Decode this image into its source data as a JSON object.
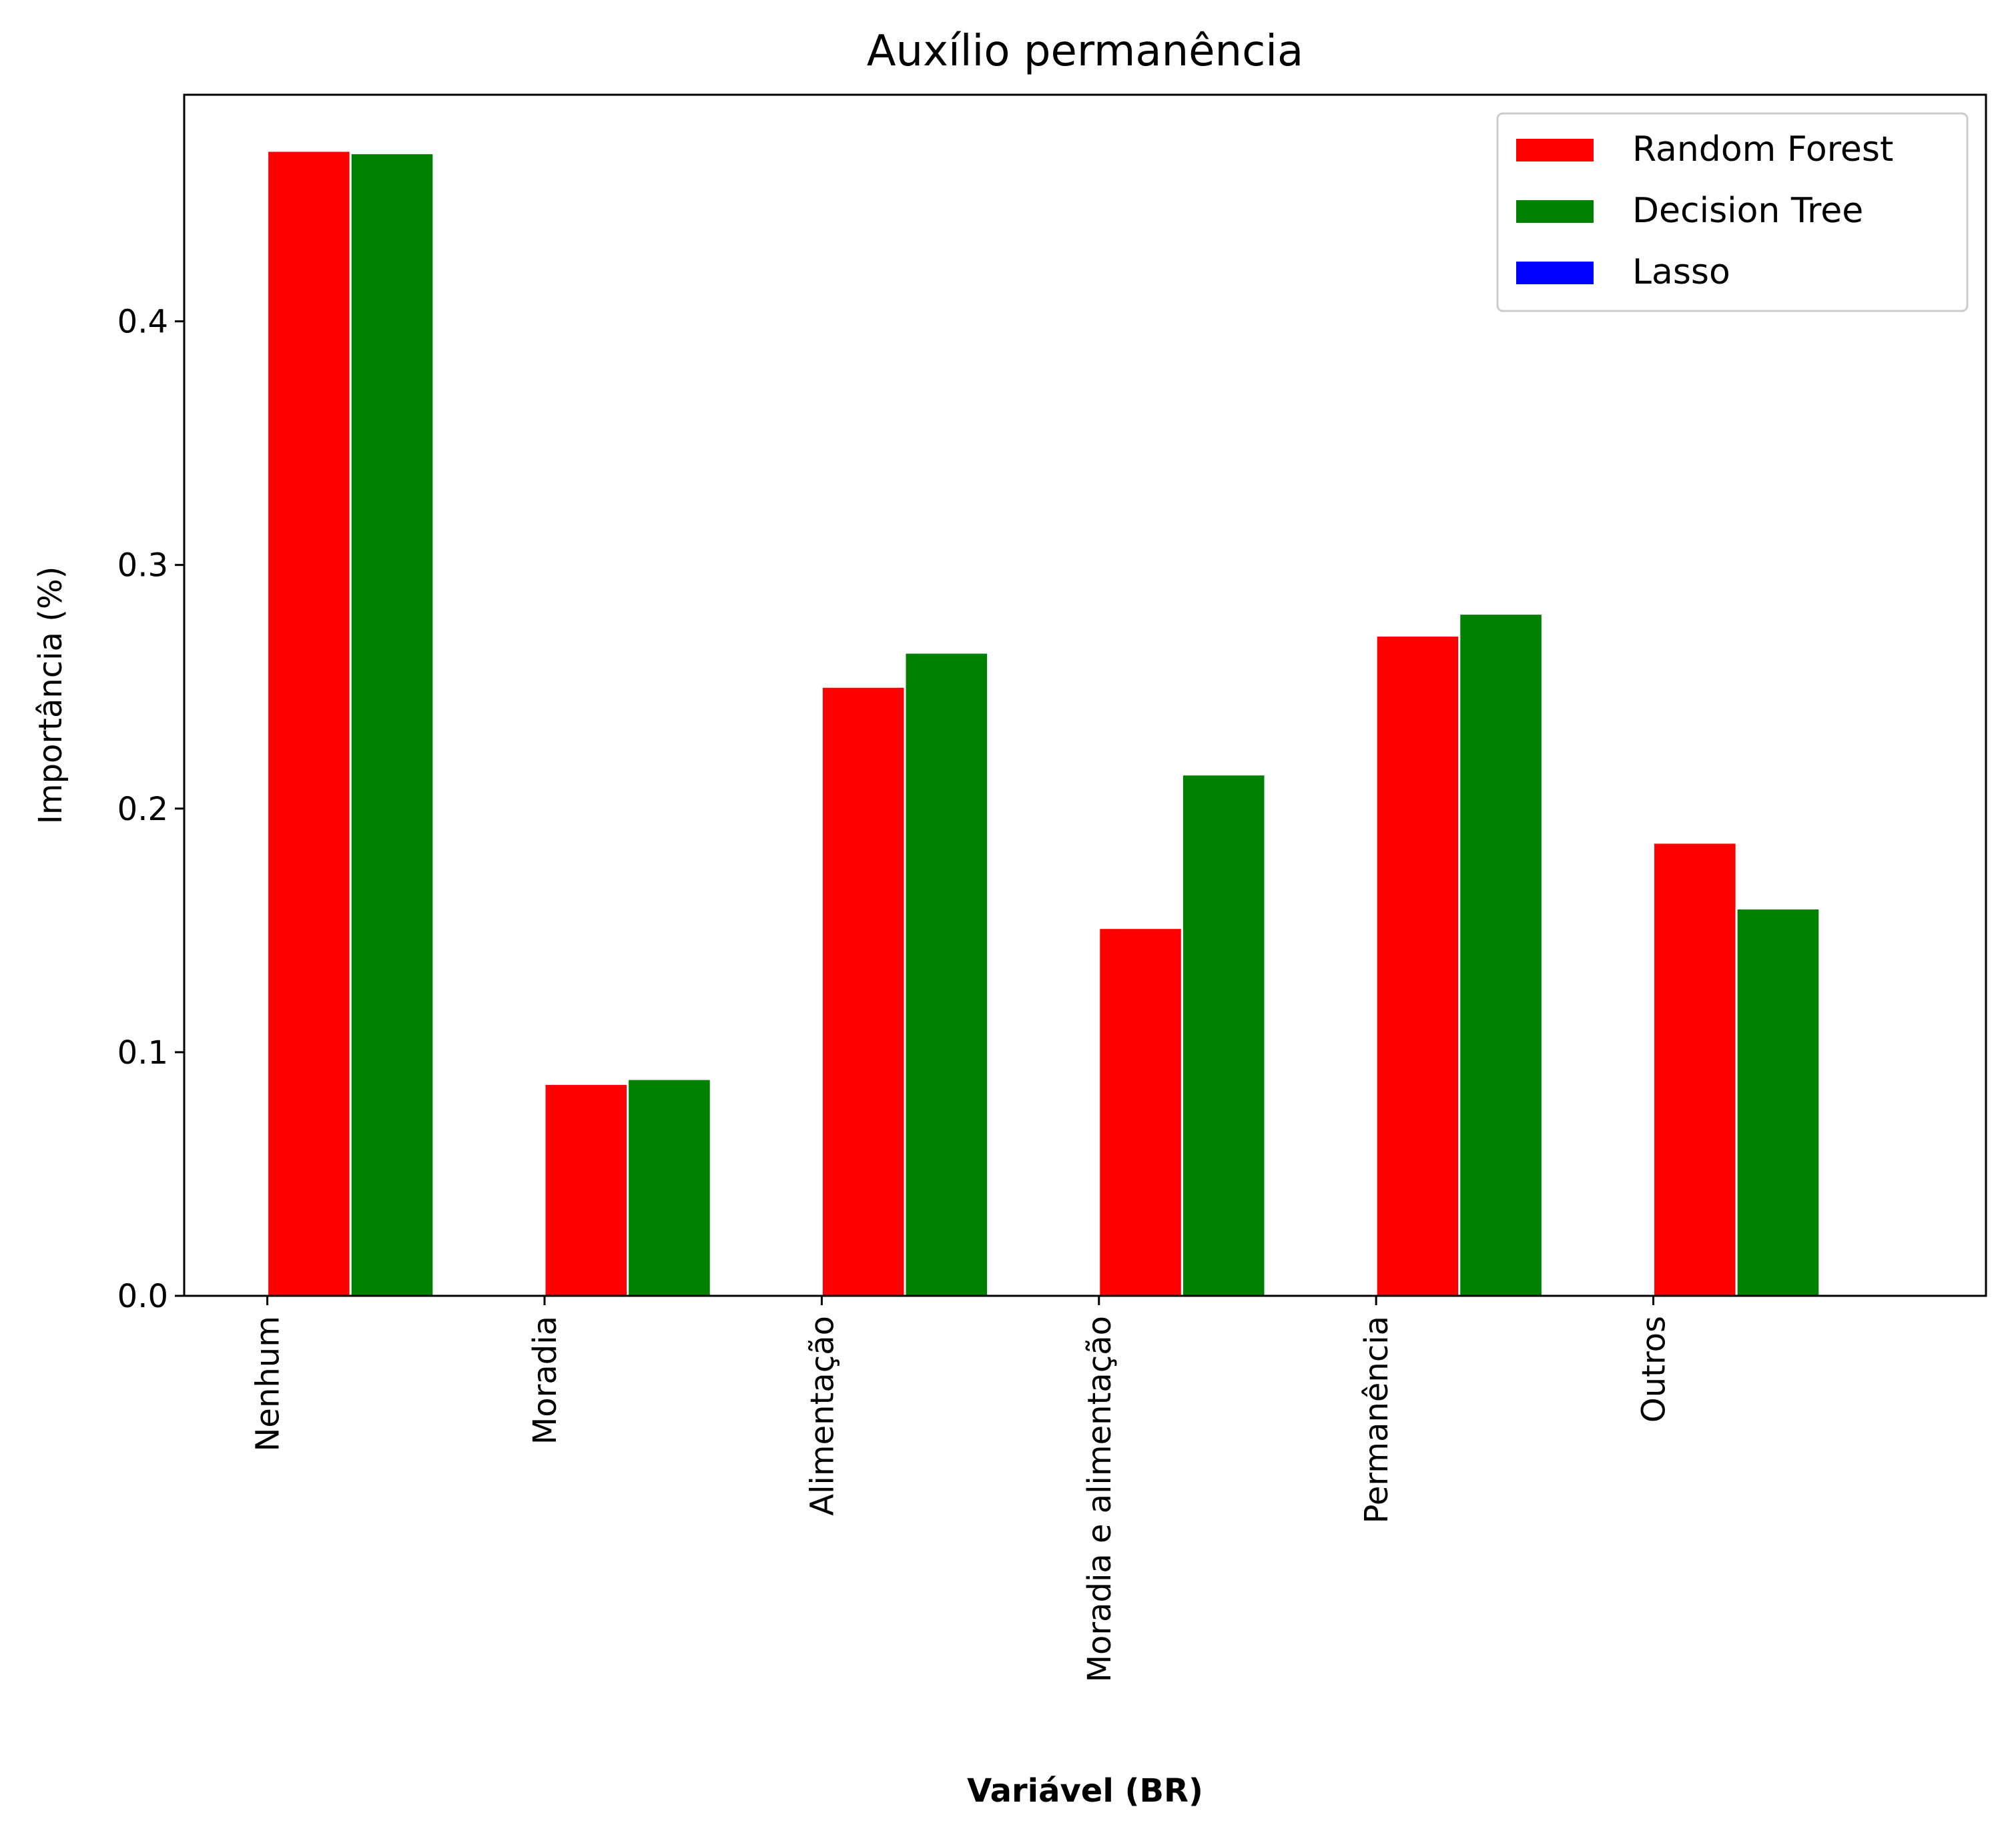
{
  "chart_data": {
    "type": "bar",
    "title": "Auxílio permanência",
    "xlabel": "Variável (BR)",
    "ylabel": "Importância (%)",
    "categories": [
      "Nenhum",
      "Moradia",
      "Alimentação",
      "Moradia e alimentação",
      "Permanência",
      "Outros"
    ],
    "series": [
      {
        "name": "Random Forest",
        "color": "#ff0000",
        "values": [
          0.47,
          0.087,
          0.25,
          0.151,
          0.271,
          0.186
        ]
      },
      {
        "name": "Decision Tree",
        "color": "#008000",
        "values": [
          0.469,
          0.089,
          0.264,
          0.214,
          0.28,
          0.159
        ]
      },
      {
        "name": "Lasso",
        "color": "#0000ff",
        "values": [
          0,
          0,
          0,
          0,
          0,
          0
        ]
      }
    ],
    "ylim": [
      0,
      0.493
    ],
    "yticks": [
      "0.0",
      "0.1",
      "0.2",
      "0.3",
      "0.4"
    ],
    "legend_position": "top-right",
    "grid": false
  }
}
